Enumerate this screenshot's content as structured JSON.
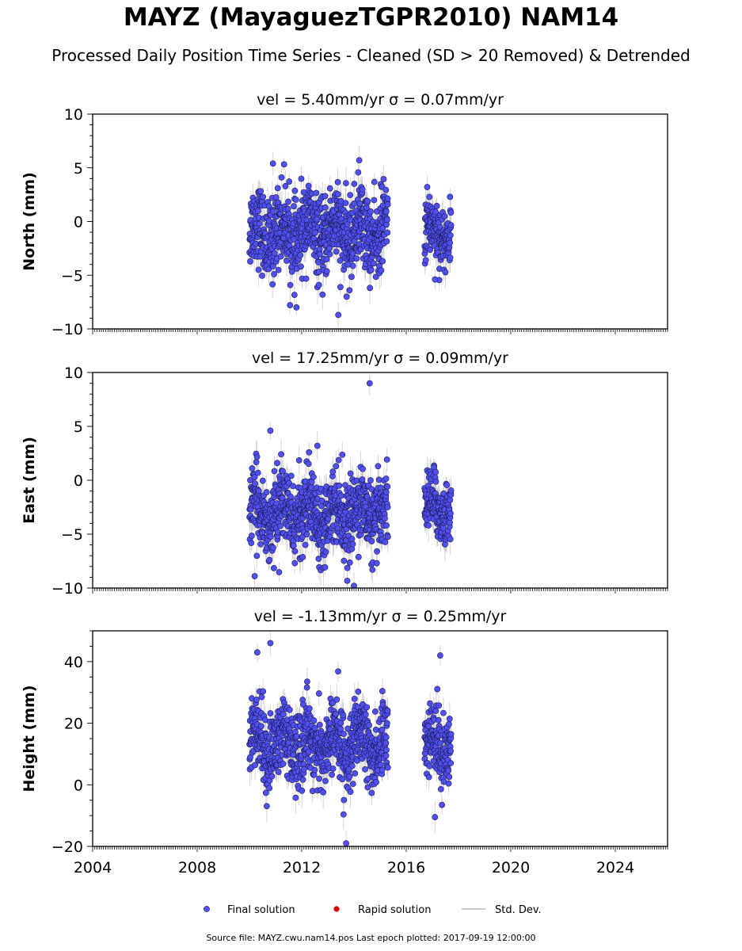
{
  "header": {
    "title": "MAYZ (MayaguezTGPR2010) NAM14",
    "subtitle": "Processed Daily Position Time Series - Cleaned (SD > 20 Removed) & Detrended"
  },
  "footer": {
    "source": "Source file: MAYZ.cwu.nam14.pos  Last epoch plotted: 2017-09-19 12:00:00"
  },
  "legend": {
    "final_label": "Final solution",
    "rapid_label": "Rapid solution",
    "std_label": "Std. Dev."
  },
  "colors": {
    "final_fill": "#5050f0",
    "final_edge": "#1a1a55",
    "rapid": "#e00000",
    "errorbar": "#bbbbbb"
  },
  "chart_data": [
    {
      "type": "scatter",
      "title": "vel = 5.40mm/yr   σ = 0.07mm/yr",
      "ylabel": "North (mm)",
      "xlim": [
        2004,
        2026
      ],
      "ylim": [
        -10,
        10
      ],
      "yticks": [
        "−10",
        "−5",
        "0",
        "5",
        "10"
      ],
      "xticks": [],
      "segments": [
        {
          "x_start": 2010.0,
          "x_end": 2015.3,
          "mean": -1.0,
          "spread": 2.3
        },
        {
          "x_start": 2016.7,
          "x_end": 2017.72,
          "mean": -1.0,
          "spread": 1.8
        }
      ],
      "extremes": [
        [
          2014.2,
          5.7
        ],
        [
          2013.4,
          -8.7
        ],
        [
          2011.8,
          -8.0
        ],
        [
          2010.9,
          5.4
        ],
        [
          2017.1,
          -5.4
        ]
      ],
      "series": [
        {
          "name": "Final solution"
        }
      ]
    },
    {
      "type": "scatter",
      "title": "vel = 17.25mm/yr   σ = 0.09mm/yr",
      "ylabel": "East (mm)",
      "xlim": [
        2004,
        2026
      ],
      "ylim": [
        -10,
        10
      ],
      "yticks": [
        "−10",
        "−5",
        "0",
        "5",
        "10"
      ],
      "xticks": [],
      "segments": [
        {
          "x_start": 2010.0,
          "x_end": 2015.3,
          "mean": -3.0,
          "spread": 2.1
        },
        {
          "x_start": 2016.7,
          "x_end": 2017.72,
          "mean": -2.5,
          "spread": 1.8
        }
      ],
      "extremes": [
        [
          2014.6,
          9.0
        ],
        [
          2010.8,
          4.6
        ],
        [
          2014.0,
          -9.8
        ],
        [
          2012.6,
          3.2
        ],
        [
          2010.2,
          -8.9
        ]
      ],
      "series": [
        {
          "name": "Final solution"
        }
      ]
    },
    {
      "type": "scatter",
      "title": "vel = -1.13mm/yr   σ = 0.25mm/yr",
      "ylabel": "Height (mm)",
      "xlim": [
        2004,
        2026
      ],
      "ylim": [
        -20,
        50
      ],
      "yticks": [
        "−20",
        "0",
        "20",
        "40"
      ],
      "xticks": [
        "2004",
        "2008",
        "2012",
        "2016",
        "2020",
        "2024"
      ],
      "segments": [
        {
          "x_start": 2010.0,
          "x_end": 2015.3,
          "mean": 13.0,
          "spread": 7.5
        },
        {
          "x_start": 2016.7,
          "x_end": 2017.72,
          "mean": 13.0,
          "spread": 7.0
        }
      ],
      "extremes": [
        [
          2010.8,
          46.0
        ],
        [
          2010.3,
          43.0
        ],
        [
          2017.3,
          42.0
        ],
        [
          2013.7,
          -19.0
        ],
        [
          2017.1,
          -10.5
        ]
      ],
      "series": [
        {
          "name": "Final solution"
        }
      ]
    }
  ]
}
